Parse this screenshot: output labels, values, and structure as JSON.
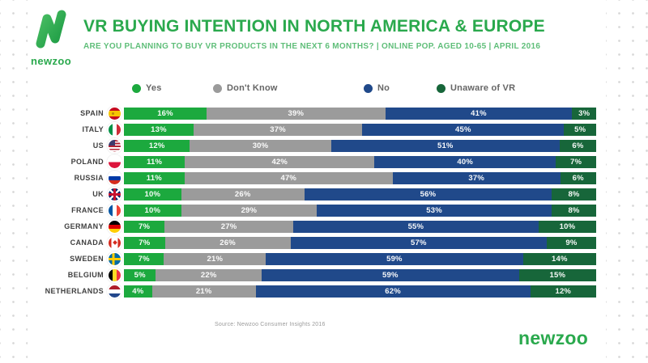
{
  "header": {
    "logo_text": "newzoo",
    "title": "VR BUYING INTENTION IN NORTH AMERICA & EUROPE",
    "subtitle": "ARE YOU PLANNING TO BUY VR PRODUCTS IN THE NEXT 6 MONTHS? | ONLINE POP. AGED 10-65 | APRIL 2016"
  },
  "colors": {
    "brand_green": "#2aa94d",
    "subtitle_green": "#5fbe79",
    "yes_green": "#1ca93e",
    "dont_know_gray": "#9b9b9b",
    "no_navy": "#20498a",
    "unaware_dark_green": "#17663a"
  },
  "legend": [
    {
      "label": "Yes",
      "color": "#1ca93e"
    },
    {
      "label": "Don't Know",
      "color": "#9b9b9b"
    },
    {
      "label": "No",
      "color": "#20498a"
    },
    {
      "label": "Unaware of VR",
      "color": "#17663a"
    }
  ],
  "chart_data": {
    "type": "bar",
    "orientation": "horizontal",
    "stacked": true,
    "unit": "%",
    "xlim": [
      0,
      100
    ],
    "grid": false,
    "legend_position": "top",
    "title": "VR BUYING INTENTION IN NORTH AMERICA & EUROPE",
    "xlabel": "",
    "ylabel": "",
    "categories": [
      "SPAIN",
      "ITALY",
      "US",
      "POLAND",
      "RUSSIA",
      "UK",
      "FRANCE",
      "GERMANY",
      "CANADA",
      "SWEDEN",
      "BELGIUM",
      "NETHERLANDS"
    ],
    "flags": [
      "spain",
      "italy",
      "us",
      "poland",
      "russia",
      "uk",
      "france",
      "germany",
      "canada",
      "sweden",
      "belgium",
      "netherlands"
    ],
    "series": [
      {
        "name": "Yes",
        "color": "#1ca93e",
        "values": [
          16,
          13,
          12,
          11,
          11,
          10,
          10,
          7,
          7,
          7,
          5,
          4
        ]
      },
      {
        "name": "Don't Know",
        "color": "#9b9b9b",
        "values": [
          39,
          37,
          30,
          42,
          47,
          26,
          29,
          27,
          26,
          21,
          22,
          21
        ]
      },
      {
        "name": "No",
        "color": "#20498a",
        "values": [
          41,
          45,
          51,
          40,
          37,
          56,
          53,
          55,
          57,
          59,
          59,
          62
        ]
      },
      {
        "name": "Unaware of VR",
        "color": "#17663a",
        "values": [
          3,
          5,
          6,
          7,
          6,
          8,
          8,
          10,
          9,
          14,
          15,
          12
        ]
      }
    ]
  },
  "footer": {
    "source": "Source: Newzoo Consumer Insights 2016",
    "wordmark": "newzoo"
  }
}
